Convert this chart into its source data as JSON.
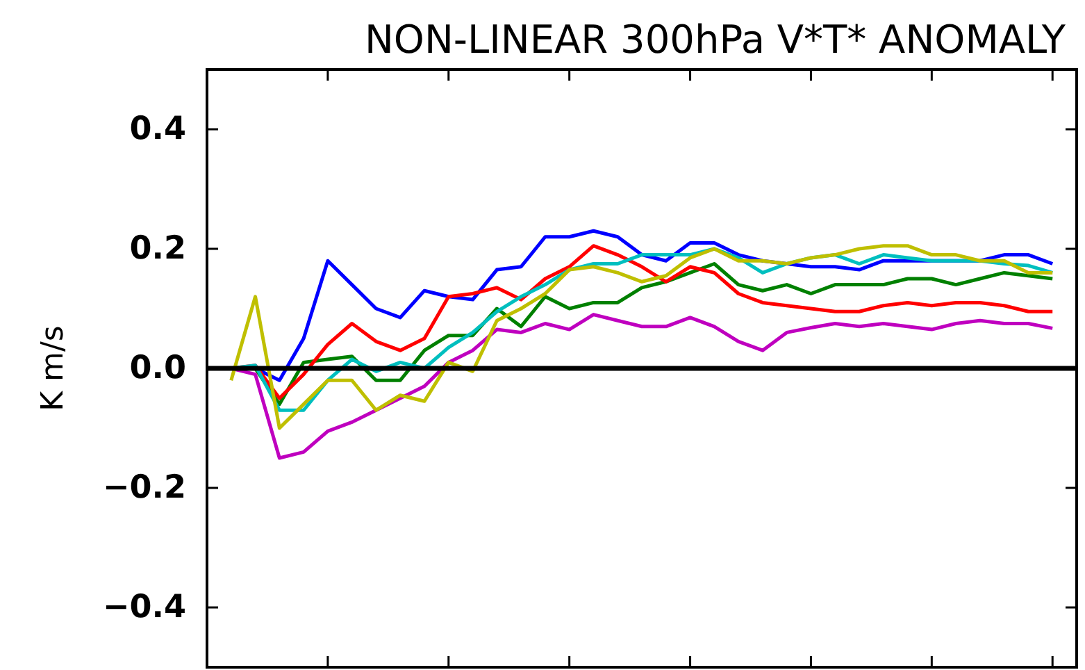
{
  "chart_data": {
    "type": "line",
    "title": "NON-LINEAR 300hPa V*T* ANOMALY",
    "ylabel": "K m/s",
    "categories": [
      null,
      null,
      null,
      null,
      null,
      null,
      null,
      null,
      null,
      null,
      null,
      null,
      null,
      null,
      null,
      null,
      null,
      null,
      null,
      null,
      null,
      null,
      null,
      null,
      null,
      null,
      null,
      null,
      null,
      null,
      null,
      null,
      null,
      null,
      null,
      null,
      null
    ],
    "series": [
      {
        "color": "#0000ff",
        "values": [
          null,
          0.0,
          0.0,
          -0.02,
          0.05,
          0.18,
          0.14,
          0.1,
          0.085,
          0.13,
          0.12,
          0.115,
          0.165,
          0.17,
          0.22,
          0.22,
          0.23,
          0.22,
          0.19,
          0.18,
          0.21,
          0.21,
          0.19,
          0.18,
          0.175,
          0.17,
          0.17,
          0.165,
          0.18,
          0.18,
          0.18,
          0.18,
          0.18,
          0.19,
          0.19,
          0.175,
          null
        ]
      },
      {
        "color": "#008000",
        "values": [
          null,
          0.0,
          0.0,
          -0.06,
          0.01,
          0.015,
          0.02,
          -0.02,
          -0.02,
          0.03,
          0.055,
          0.055,
          0.1,
          0.07,
          0.12,
          0.1,
          0.11,
          0.11,
          0.135,
          0.145,
          0.16,
          0.175,
          0.14,
          0.13,
          0.14,
          0.125,
          0.14,
          0.14,
          0.14,
          0.15,
          0.15,
          0.14,
          0.15,
          0.16,
          0.155,
          0.15,
          null
        ]
      },
      {
        "color": "#ff0000",
        "values": [
          null,
          0.0,
          0.005,
          -0.05,
          -0.01,
          0.04,
          0.075,
          0.045,
          0.03,
          0.05,
          0.12,
          0.125,
          0.135,
          0.115,
          0.15,
          0.17,
          0.205,
          0.19,
          0.17,
          0.145,
          0.17,
          0.16,
          0.125,
          0.11,
          0.105,
          0.1,
          0.095,
          0.095,
          0.105,
          0.11,
          0.105,
          0.11,
          0.11,
          0.105,
          0.095,
          0.095,
          null
        ]
      },
      {
        "color": "#00bfbf",
        "values": [
          null,
          0.0,
          0.005,
          -0.07,
          -0.07,
          -0.02,
          0.015,
          -0.005,
          0.01,
          0.0,
          0.035,
          0.06,
          0.095,
          0.12,
          0.14,
          0.165,
          0.175,
          0.175,
          0.19,
          0.19,
          0.19,
          0.2,
          0.185,
          0.16,
          0.175,
          0.185,
          0.19,
          0.175,
          0.19,
          0.185,
          0.18,
          0.18,
          0.18,
          0.175,
          0.172,
          0.16,
          null
        ]
      },
      {
        "color": "#bf00bf",
        "values": [
          null,
          0.0,
          -0.01,
          -0.15,
          -0.14,
          -0.105,
          -0.09,
          -0.07,
          -0.05,
          -0.03,
          0.01,
          0.03,
          0.065,
          0.06,
          0.075,
          0.065,
          0.09,
          0.08,
          0.07,
          0.07,
          0.085,
          0.07,
          0.045,
          0.03,
          0.06,
          0.068,
          0.075,
          0.07,
          0.075,
          0.07,
          0.065,
          0.075,
          0.08,
          0.075,
          0.075,
          0.067,
          null
        ]
      },
      {
        "color": "#bfbf00",
        "values": [
          null,
          -0.02,
          0.12,
          -0.1,
          -0.06,
          -0.02,
          -0.02,
          -0.07,
          -0.045,
          -0.055,
          0.01,
          -0.005,
          0.08,
          0.1,
          0.125,
          0.165,
          0.17,
          0.16,
          0.145,
          0.155,
          0.185,
          0.2,
          0.18,
          0.18,
          0.175,
          0.185,
          0.19,
          0.2,
          0.205,
          0.205,
          0.19,
          0.19,
          0.18,
          0.18,
          0.16,
          0.16,
          null
        ]
      }
    ],
    "ylim": [
      -0.5,
      0.5
    ],
    "yticks": [
      {
        "value": -0.4,
        "label": "−0.4"
      },
      {
        "value": -0.2,
        "label": "−0.2"
      },
      {
        "value": 0.0,
        "label": "0.0"
      },
      {
        "value": 0.2,
        "label": "0.2"
      },
      {
        "value": 0.4,
        "label": "0.4"
      }
    ],
    "ref_lines": [
      {
        "axis": "y",
        "value": 0,
        "color": "#000000"
      }
    ],
    "grid": false,
    "marker": "none",
    "line_style": "solid"
  }
}
